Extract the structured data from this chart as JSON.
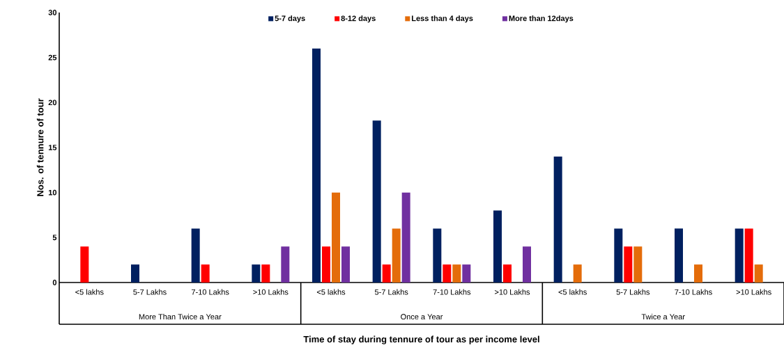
{
  "chart_data": {
    "type": "bar",
    "xlabel": "Time of stay during tennure of tour as per income level",
    "ylabel": "Nos. of tennure of tour",
    "categories": [
      "<5 lakhs",
      "5-7 Lakhs",
      "7-10 Lakhs",
      ">10 Lakhs",
      "<5 lakhs",
      "5-7 Lakhs",
      "7-10 Lakhs",
      ">10 Lakhs",
      "<5 lakhs",
      "5-7 Lakhs",
      "7-10 Lakhs",
      ">10 Lakhs"
    ],
    "annotations": [
      "More Than Twice a Year",
      "Once a Year",
      "Twice a Year"
    ],
    "series": [
      {
        "name": "5-7 days",
        "color": "#002060",
        "values": [
          0,
          2,
          6,
          2,
          26,
          18,
          6,
          8,
          14,
          6,
          6,
          6
        ]
      },
      {
        "name": "8-12 days",
        "color": "#ff0000",
        "values": [
          4,
          0,
          2,
          2,
          4,
          2,
          2,
          2,
          0,
          4,
          0,
          6
        ]
      },
      {
        "name": "Less than 4 days",
        "color": "#e46c0a",
        "values": [
          0,
          0,
          0,
          0,
          10,
          6,
          2,
          0,
          2,
          4,
          2,
          2
        ]
      },
      {
        "name": "More than 12days",
        "color": "#7030a0",
        "values": [
          0,
          0,
          0,
          4,
          4,
          10,
          2,
          4,
          0,
          0,
          0,
          0
        ]
      }
    ],
    "ylim": [
      0,
      30
    ],
    "yticks": [
      0,
      5,
      10,
      15,
      20,
      25,
      30
    ],
    "grid": false,
    "legend": "top"
  }
}
